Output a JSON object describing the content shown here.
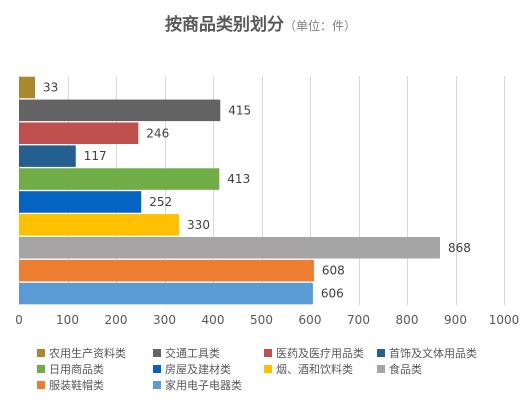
{
  "chart_data": {
    "type": "bar",
    "orientation": "horizontal",
    "title": "按商品类别划分",
    "subtitle": "（单位：件）",
    "categories": [
      "农用生产资料类",
      "交通工具类",
      "医药及医疗用品类",
      "首饰及文体用品类",
      "日用商品类",
      "房屋及建材类",
      "烟、酒和饮料类",
      "食品类",
      "服装鞋帽类",
      "家用电子电器类"
    ],
    "values": [
      33,
      415,
      246,
      117,
      413,
      252,
      330,
      868,
      608,
      606
    ],
    "colors": [
      "#A88A2A",
      "#636363",
      "#C0504D",
      "#255E91",
      "#70AD47",
      "#0563C1",
      "#FFC000",
      "#A5A5A5",
      "#ED7D31",
      "#5B9BD5"
    ],
    "xlim": [
      0,
      1000
    ],
    "xticks": [
      0,
      100,
      200,
      300,
      400,
      500,
      600,
      700,
      800,
      900,
      1000
    ],
    "grid": true,
    "legend_position": "bottom"
  }
}
